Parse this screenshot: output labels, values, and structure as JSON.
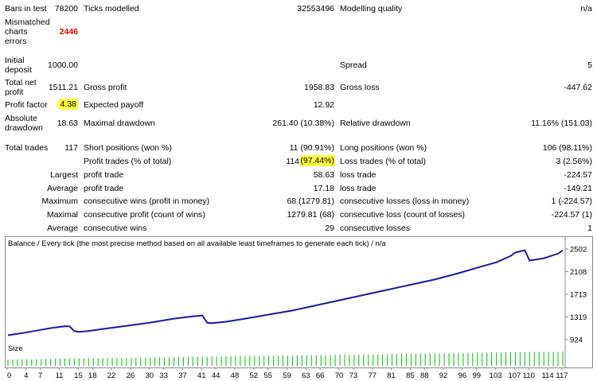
{
  "stats": {
    "bars_in_test_label": "Bars in test",
    "bars_in_test_value": "78200",
    "ticks_modelled_label": "Ticks modelled",
    "ticks_modelled_value": "32553496",
    "modelling_quality_label": "Modelling quality",
    "modelling_quality_value": "n/a",
    "mismatched_label_1": "Mismatched",
    "mismatched_label_2": "charts",
    "mismatched_label_3": "errors",
    "mismatched_value": "2446",
    "initial_deposit_label_1": "Initial",
    "initial_deposit_label_2": "deposit",
    "initial_deposit_value": "1000.00",
    "spread_label": "Spread",
    "spread_value": "5",
    "total_net_profit_label_1": "Total net",
    "total_net_profit_label_2": "profit",
    "total_net_profit_value": "1511.21",
    "gross_profit_label": "Gross profit",
    "gross_profit_value": "1958.83",
    "gross_loss_label": "Gross loss",
    "gross_loss_value": "-447.62",
    "profit_factor_label": "Profit factor",
    "profit_factor_value": "4.38",
    "expected_payoff_label": "Expected payoff",
    "expected_payoff_value": "12.92",
    "absolute_drawdown_label_1": "Absolute",
    "absolute_drawdown_label_2": "drawdown",
    "absolute_drawdown_value": "18.63",
    "maximal_drawdown_label": "Maximal drawdown",
    "maximal_drawdown_value": "261.40 (10.38%)",
    "relative_drawdown_label": "Relative drawdown",
    "relative_drawdown_value": "11.16% (151.03)",
    "total_trades_label": "Total trades",
    "total_trades_value": "117",
    "short_positions_label": "Short positions (won %)",
    "short_positions_value": "11 (90.91%)",
    "long_positions_label": "Long positions (won %)",
    "long_positions_value": "106 (98.11%)",
    "profit_trades_label": "Profit trades (% of total)",
    "profit_trades_count": "114",
    "profit_trades_pct": "(97.44%)",
    "loss_trades_label": "Loss trades (% of total)",
    "loss_trades_value": "3 (2.56%)",
    "largest_label": "Largest",
    "largest_profit_label": "profit trade",
    "largest_profit_value": "58.63",
    "largest_loss_label": "loss trade",
    "largest_loss_value": "-224.57",
    "average_label": "Average",
    "average_profit_label": "profit trade",
    "average_profit_value": "17.18",
    "average_loss_label": "loss trade",
    "average_loss_value": "-149.21",
    "maximum_label": "Maximum",
    "max_consec_wins_label": "consecutive wins (profit in money)",
    "max_consec_wins_value": "68 (1279.81)",
    "max_consec_losses_label": "consecutive losses (loss in money)",
    "max_consec_losses_value": "1 (-224.57)",
    "maximal_label": "Maximal",
    "maximal_consec_profit_label": "consecutive profit (count of wins)",
    "maximal_consec_profit_value": "1279.81 (68)",
    "maximal_consec_loss_label": "consecutive loss (count of losses)",
    "maximal_consec_loss_value": "-224.57 (1)",
    "average2_label": "Average",
    "avg_consec_wins_label": "consecutive wins",
    "avg_consec_wins_value": "29",
    "avg_consec_losses_label": "consecutive losses",
    "avg_consec_losses_value": "1"
  },
  "colors": {
    "balance_line": "#1a1aa6",
    "size_bars": "#00c000",
    "highlight": "#ffff40",
    "error_value": "#e00000"
  },
  "size_panel": {
    "label": "Size"
  },
  "chart_data": {
    "type": "line",
    "title": "Balance / Every tick (the most precise method based on all available least timeframes to generate each tick) / n/a",
    "series": [
      {
        "name": "Balance",
        "x": [
          0,
          3,
          6,
          9,
          12,
          13,
          14,
          15,
          17,
          20,
          25,
          30,
          35,
          39,
          41,
          42,
          43,
          46,
          50,
          55,
          60,
          65,
          70,
          75,
          80,
          85,
          90,
          95,
          100,
          103,
          106,
          107,
          108,
          109,
          110,
          113,
          116,
          117
        ],
        "values": [
          1000,
          1038,
          1080,
          1125,
          1158,
          1155,
          1072,
          1060,
          1075,
          1110,
          1165,
          1220,
          1290,
          1330,
          1345,
          1218,
          1210,
          1235,
          1290,
          1360,
          1430,
          1520,
          1610,
          1700,
          1790,
          1880,
          1970,
          2080,
          2200,
          2270,
          2380,
          2440,
          2460,
          2480,
          2300,
          2340,
          2420,
          2480
        ]
      }
    ],
    "ylim": [
      924,
      2502
    ],
    "yticks": [
      "2502",
      "2108",
      "1713",
      "1319",
      "924"
    ],
    "xticks": [
      "0",
      "4",
      "7",
      "11",
      "15",
      "18",
      "22",
      "26",
      "30",
      "33",
      "37",
      "41",
      "44",
      "48",
      "52",
      "55",
      "59",
      "63",
      "66",
      "70",
      "73",
      "77",
      "81",
      "85",
      "88",
      "92",
      "96",
      "99",
      "103",
      "107",
      "110",
      "114",
      "117"
    ],
    "size_values_note": "",
    "grid": false,
    "legend": "none"
  }
}
